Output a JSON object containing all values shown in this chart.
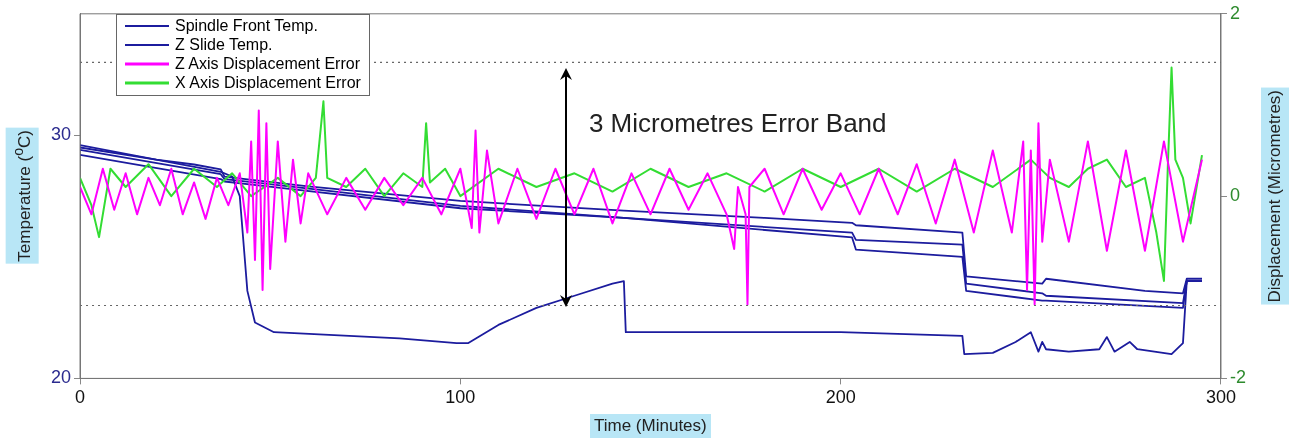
{
  "chart_data": {
    "type": "line",
    "xlabel": "Time (Minutes)",
    "ylabel": "Temperature ($^{o}$C)",
    "y2label": "Displacement (Micrometres)",
    "xlim": [
      0,
      300
    ],
    "xticks": [
      0,
      100,
      200,
      300
    ],
    "ylim": [
      20,
      35
    ],
    "yticks": [
      20,
      30
    ],
    "y2lim": [
      -2,
      2
    ],
    "y2ticks": [
      -2,
      0,
      2
    ],
    "grid": false,
    "legend": "top left",
    "marker": "none",
    "line_style": "solid",
    "ref_lines": [
      {
        "axis": "y",
        "value": 33,
        "color": "#666666",
        "line_style": "dotted"
      },
      {
        "axis": "y",
        "value": 23,
        "color": "#666666",
        "line_style": "dotted"
      }
    ],
    "annotations": [
      "3 Micrometres Error Band"
    ],
    "series": [
      {
        "name": "Spindle Front Temp.",
        "color": "#1c1c9e",
        "x": [
          0,
          10,
          20,
          30,
          37,
          38,
          60,
          100,
          143,
          180,
          203,
          204,
          232,
          233,
          253,
          254,
          280,
          290,
          291,
          295
        ],
        "values": [
          29.6,
          29.3,
          29.0,
          28.8,
          28.6,
          28.3,
          27.9,
          27.3,
          26.9,
          26.6,
          26.4,
          26.3,
          26.0,
          24.2,
          23.9,
          24.1,
          23.6,
          23.5,
          24.1,
          24.1
        ]
      },
      {
        "name": "Z Slide Temp.",
        "color": "#1c1c9e",
        "x": [
          0,
          20,
          37,
          40,
          42,
          44,
          46,
          51,
          84,
          99,
          102,
          110,
          120,
          130,
          140,
          143,
          143.5,
          200,
          232,
          232.5,
          240,
          246,
          250,
          252,
          253,
          254,
          260,
          268,
          270,
          272,
          276,
          278,
          287,
          290,
          291,
          295
        ],
        "values": [
          29.5,
          29.0,
          28.5,
          28.3,
          27.5,
          23.6,
          22.3,
          21.9,
          21.65,
          21.45,
          21.45,
          22.2,
          22.9,
          23.4,
          23.9,
          24.0,
          21.9,
          21.9,
          21.75,
          21.0,
          21.05,
          21.5,
          21.9,
          21.1,
          21.5,
          21.2,
          21.1,
          21.2,
          21.7,
          21.1,
          21.5,
          21.2,
          21.0,
          21.45,
          24.0,
          24.0
        ]
      },
      {
        "name": "Z Axis Displacement Error",
        "color": "#ff00ff",
        "axis": "y2",
        "x": [
          0,
          3,
          6,
          9,
          12,
          15,
          18,
          21,
          24,
          27,
          30,
          33,
          36,
          39,
          42,
          44,
          45,
          46,
          47,
          48,
          49,
          50,
          52,
          54,
          56,
          58,
          60,
          65,
          70,
          75,
          80,
          85,
          90,
          95,
          100,
          103,
          104,
          105,
          107,
          110,
          115,
          120,
          125,
          130,
          135,
          140,
          145,
          150,
          155,
          160,
          165,
          170,
          172,
          173,
          175,
          175.5,
          176,
          180,
          185,
          190,
          195,
          200,
          205,
          210,
          215,
          220,
          225,
          230,
          235,
          240,
          245,
          248,
          249,
          250,
          251,
          252,
          253,
          255,
          260,
          265,
          270,
          275,
          280,
          285,
          290,
          295
        ],
        "values": [
          0.1,
          -0.2,
          0.3,
          -0.15,
          0.25,
          -0.2,
          0.2,
          -0.1,
          0.3,
          -0.2,
          0.15,
          -0.25,
          0.2,
          -0.1,
          0.25,
          -0.4,
          0.6,
          -0.7,
          0.94,
          -1.03,
          0.8,
          -0.8,
          0.6,
          -0.5,
          0.4,
          -0.3,
          0.25,
          -0.2,
          0.2,
          -0.15,
          0.2,
          -0.1,
          0.2,
          -0.2,
          0.3,
          -0.35,
          0.72,
          -0.4,
          0.5,
          -0.3,
          0.3,
          -0.25,
          0.3,
          -0.2,
          0.3,
          -0.3,
          0.25,
          -0.2,
          0.3,
          -0.15,
          0.25,
          -0.2,
          -0.58,
          0.1,
          -0.2,
          -1.19,
          0.1,
          0.3,
          -0.2,
          0.3,
          -0.15,
          0.25,
          -0.2,
          0.3,
          -0.2,
          0.35,
          -0.3,
          0.4,
          -0.4,
          0.5,
          -0.4,
          0.6,
          -1.03,
          0.5,
          -1.19,
          0.8,
          -0.5,
          0.4,
          -0.5,
          0.6,
          -0.6,
          0.5,
          -0.6,
          0.6,
          -0.5,
          0.4
        ]
      },
      {
        "name": "X Axis Displacement Error",
        "color": "#33dd33",
        "axis": "y2",
        "x": [
          0,
          3,
          5,
          8,
          12,
          18,
          24,
          30,
          36,
          40,
          45,
          52,
          58,
          62,
          64,
          65,
          70,
          75,
          80,
          85,
          90,
          91,
          92,
          96,
          100,
          110,
          120,
          130,
          140,
          150,
          160,
          170,
          180,
          190,
          200,
          210,
          220,
          230,
          240,
          250,
          255,
          260,
          265,
          270,
          275,
          280,
          283,
          285,
          286,
          287,
          288,
          290,
          292,
          295
        ],
        "values": [
          0.2,
          -0.1,
          -0.45,
          0.3,
          0.1,
          0.35,
          0,
          0.3,
          0.1,
          0.25,
          0,
          0.2,
          0,
          0.2,
          1.04,
          0.2,
          0.1,
          0.3,
          0,
          0.25,
          0.1,
          0.8,
          0.15,
          0.3,
          0,
          0.3,
          0.1,
          0.25,
          0.05,
          0.3,
          0.1,
          0.25,
          0.05,
          0.3,
          0.1,
          0.3,
          0.05,
          0.3,
          0.1,
          0.4,
          0.2,
          0.1,
          0.3,
          0.4,
          0.1,
          0.2,
          -0.4,
          -0.93,
          0.3,
          1.41,
          0.4,
          0.2,
          -0.3,
          0.45
        ]
      },
      {
        "color": "#1c1c9e",
        "x": [
          0,
          37,
          38,
          100,
          143,
          203,
          204,
          232,
          233,
          253,
          254,
          290,
          291,
          295
        ],
        "values": [
          29.4,
          28.4,
          28.2,
          27.1,
          26.6,
          26.0,
          25.7,
          25.5,
          23.9,
          23.5,
          23.4,
          23.1,
          24.0,
          24.0
        ]
      },
      {
        "color": "#1c1c9e",
        "x": [
          0,
          37,
          38,
          100,
          143,
          203,
          204,
          232,
          233,
          253,
          254,
          290,
          291,
          295
        ],
        "values": [
          29.2,
          28.2,
          28.1,
          27.0,
          26.6,
          25.8,
          25.3,
          25.0,
          23.6,
          23.2,
          23.2,
          22.9,
          24.0,
          24.0
        ]
      }
    ]
  }
}
